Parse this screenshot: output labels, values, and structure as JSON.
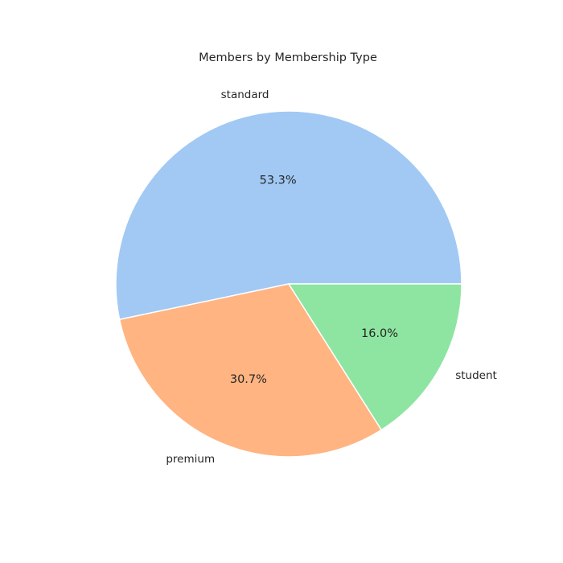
{
  "chart_data": {
    "type": "pie",
    "title": "Members by Membership Type",
    "categories": [
      "standard",
      "premium",
      "student"
    ],
    "values": [
      53.3,
      30.7,
      16.0
    ],
    "percent_labels": [
      "53.3%",
      "30.7%",
      "16.0%"
    ],
    "colors": [
      "#a1c9f4",
      "#ffb482",
      "#8de5a1"
    ],
    "start_angle_deg": 0,
    "direction": "counterclockwise",
    "edge_color": "#ffffff",
    "legend": "none"
  }
}
